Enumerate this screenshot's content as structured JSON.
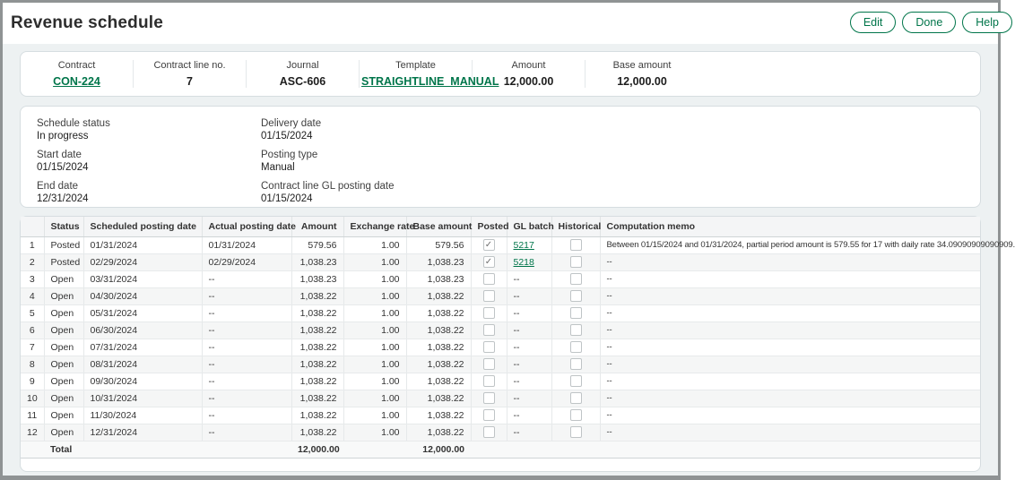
{
  "page": {
    "title": "Revenue schedule"
  },
  "actions": {
    "edit": "Edit",
    "done": "Done",
    "help": "Help"
  },
  "colors": {
    "accent_green": "#00754a",
    "card_border": "#d6dde0",
    "page_bg": "#edf1f2"
  },
  "summary": {
    "fields": [
      {
        "label": "Contract",
        "value": "CON-224",
        "link": true
      },
      {
        "label": "Contract line no.",
        "value": "7",
        "link": false
      },
      {
        "label": "Journal",
        "value": "ASC-606",
        "link": false
      },
      {
        "label": "Template",
        "value": "STRAIGHTLINE_MANUAL",
        "link": true
      },
      {
        "label": "Amount",
        "value": "12,000.00",
        "link": false
      },
      {
        "label": "Base amount",
        "value": "12,000.00",
        "link": false
      }
    ]
  },
  "details": {
    "left": [
      {
        "label": "Schedule status",
        "value": "In progress"
      },
      {
        "label": "Start date",
        "value": "01/15/2024"
      },
      {
        "label": "End date",
        "value": "12/31/2024"
      }
    ],
    "right": [
      {
        "label": "Delivery date",
        "value": "01/15/2024"
      },
      {
        "label": "Posting type",
        "value": "Manual"
      },
      {
        "label": "Contract line GL posting date",
        "value": "01/15/2024"
      }
    ]
  },
  "table": {
    "columns": [
      "",
      "Status",
      "Scheduled posting date",
      "Actual posting date",
      "Amount",
      "Exchange rate",
      "Base amount",
      "Posted",
      "GL batch",
      "Historical",
      "Computation memo"
    ],
    "rows": [
      {
        "num": "1",
        "status": "Posted",
        "scheduled": "01/31/2024",
        "actual": "01/31/2024",
        "amount": "579.56",
        "exchange_rate": "1.00",
        "base_amount": "579.56",
        "posted": true,
        "gl_batch": "5217",
        "gl_link": true,
        "historical": false,
        "memo": "Between 01/15/2024 and 01/31/2024, partial period amount is 579.55 for 17 with daily rate 34.09090909090909."
      },
      {
        "num": "2",
        "status": "Posted",
        "scheduled": "02/29/2024",
        "actual": "02/29/2024",
        "amount": "1,038.23",
        "exchange_rate": "1.00",
        "base_amount": "1,038.23",
        "posted": true,
        "gl_batch": "5218",
        "gl_link": true,
        "historical": false,
        "memo": "--"
      },
      {
        "num": "3",
        "status": "Open",
        "scheduled": "03/31/2024",
        "actual": "--",
        "amount": "1,038.23",
        "exchange_rate": "1.00",
        "base_amount": "1,038.23",
        "posted": false,
        "gl_batch": "--",
        "gl_link": false,
        "historical": false,
        "memo": "--"
      },
      {
        "num": "4",
        "status": "Open",
        "scheduled": "04/30/2024",
        "actual": "--",
        "amount": "1,038.22",
        "exchange_rate": "1.00",
        "base_amount": "1,038.22",
        "posted": false,
        "gl_batch": "--",
        "gl_link": false,
        "historical": false,
        "memo": "--"
      },
      {
        "num": "5",
        "status": "Open",
        "scheduled": "05/31/2024",
        "actual": "--",
        "amount": "1,038.22",
        "exchange_rate": "1.00",
        "base_amount": "1,038.22",
        "posted": false,
        "gl_batch": "--",
        "gl_link": false,
        "historical": false,
        "memo": "--"
      },
      {
        "num": "6",
        "status": "Open",
        "scheduled": "06/30/2024",
        "actual": "--",
        "amount": "1,038.22",
        "exchange_rate": "1.00",
        "base_amount": "1,038.22",
        "posted": false,
        "gl_batch": "--",
        "gl_link": false,
        "historical": false,
        "memo": "--"
      },
      {
        "num": "7",
        "status": "Open",
        "scheduled": "07/31/2024",
        "actual": "--",
        "amount": "1,038.22",
        "exchange_rate": "1.00",
        "base_amount": "1,038.22",
        "posted": false,
        "gl_batch": "--",
        "gl_link": false,
        "historical": false,
        "memo": "--"
      },
      {
        "num": "8",
        "status": "Open",
        "scheduled": "08/31/2024",
        "actual": "--",
        "amount": "1,038.22",
        "exchange_rate": "1.00",
        "base_amount": "1,038.22",
        "posted": false,
        "gl_batch": "--",
        "gl_link": false,
        "historical": false,
        "memo": "--"
      },
      {
        "num": "9",
        "status": "Open",
        "scheduled": "09/30/2024",
        "actual": "--",
        "amount": "1,038.22",
        "exchange_rate": "1.00",
        "base_amount": "1,038.22",
        "posted": false,
        "gl_batch": "--",
        "gl_link": false,
        "historical": false,
        "memo": "--"
      },
      {
        "num": "10",
        "status": "Open",
        "scheduled": "10/31/2024",
        "actual": "--",
        "amount": "1,038.22",
        "exchange_rate": "1.00",
        "base_amount": "1,038.22",
        "posted": false,
        "gl_batch": "--",
        "gl_link": false,
        "historical": false,
        "memo": "--"
      },
      {
        "num": "11",
        "status": "Open",
        "scheduled": "11/30/2024",
        "actual": "--",
        "amount": "1,038.22",
        "exchange_rate": "1.00",
        "base_amount": "1,038.22",
        "posted": false,
        "gl_batch": "--",
        "gl_link": false,
        "historical": false,
        "memo": "--"
      },
      {
        "num": "12",
        "status": "Open",
        "scheduled": "12/31/2024",
        "actual": "--",
        "amount": "1,038.22",
        "exchange_rate": "1.00",
        "base_amount": "1,038.22",
        "posted": false,
        "gl_batch": "--",
        "gl_link": false,
        "historical": false,
        "memo": "--"
      }
    ],
    "total": {
      "label": "Total",
      "amount": "12,000.00",
      "base_amount": "12,000.00"
    }
  }
}
